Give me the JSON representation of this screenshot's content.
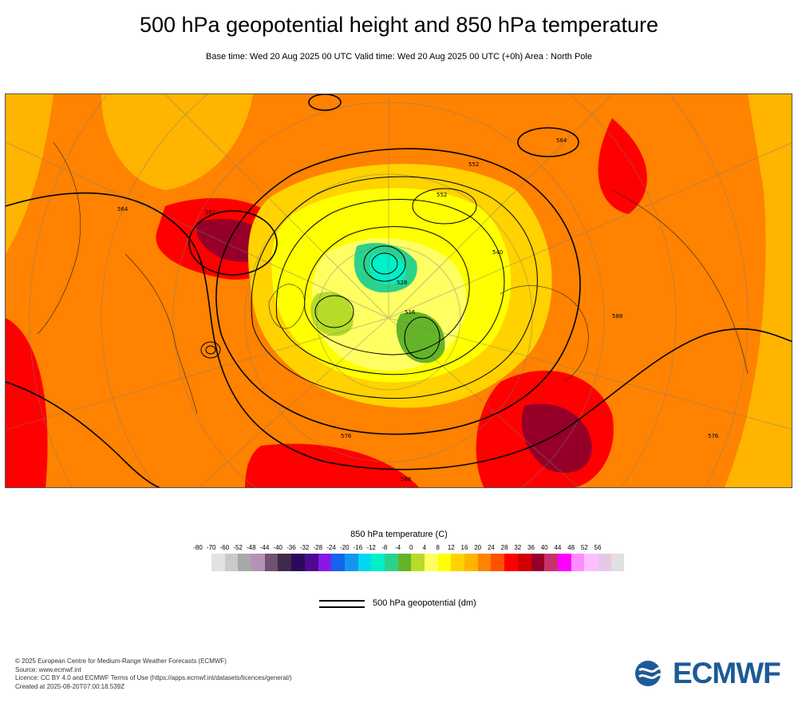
{
  "title": "500 hPa geopotential height and 850 hPa temperature",
  "subtitle": "Base time: Wed 20 Aug 2025 00 UTC Valid time: Wed 20 Aug 2025 00 UTC (+0h) Area : North Pole",
  "legend": {
    "title": "850 hPa temperature (C)",
    "ticks": [
      "-80",
      "-70",
      "-60",
      "-52",
      "-48",
      "-44",
      "-40",
      "-36",
      "-32",
      "-28",
      "-24",
      "-20",
      "-16",
      "-12",
      "-8",
      "-4",
      "0",
      "4",
      "8",
      "12",
      "16",
      "20",
      "24",
      "28",
      "32",
      "36",
      "40",
      "44",
      "48",
      "52",
      "56"
    ],
    "colors": [
      "#e2e2e2",
      "#cacaca",
      "#a8a8a8",
      "#b491b5",
      "#6e526e",
      "#3d2b4e",
      "#2b0a5e",
      "#4d0a8d",
      "#8a16e8",
      "#1464f0",
      "#1496f0",
      "#00d7f0",
      "#00f0c8",
      "#2ad28c",
      "#64b428",
      "#b4dc28",
      "#ffff64",
      "#ffff00",
      "#ffd200",
      "#ffb400",
      "#ff8200",
      "#ff5000",
      "#ff0000",
      "#d20000",
      "#960028",
      "#c8326e",
      "#ff00ff",
      "#ff8cff",
      "#ffbeff",
      "#e6c8e6",
      "#e0e0e0"
    ]
  },
  "line_legend": {
    "label": "500 hPa geopotential (dm)"
  },
  "credits": [
    "© 2025 European Centre for Medium-Range Weather Forecasts (ECMWF)",
    "Source: www.ecmwf.int",
    "Licence: CC BY 4.0 and ECMWF Terms of Use (https://apps.ecmwf.int/datasets/licences/general/)",
    "Created at 2025-08-20T07:00:18.539Z"
  ],
  "logo": {
    "text": "ECMWF",
    "color": "#1d5a96"
  },
  "map": {
    "background_color": "#ff8200",
    "contour_labels": [
      "564",
      "576",
      "588",
      "552",
      "540",
      "528",
      "516",
      "576",
      "588",
      "552",
      "564",
      "552"
    ]
  }
}
